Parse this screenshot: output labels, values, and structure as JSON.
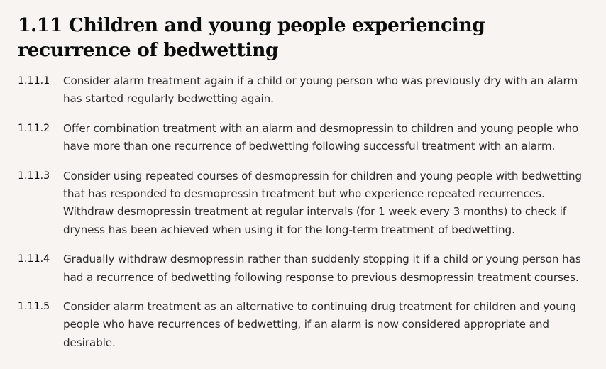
{
  "section": {
    "title": "1.11 Children and young people experiencing recurrence of bedwetting"
  },
  "recommendations": [
    {
      "number": "1.11.1",
      "text": "Consider alarm treatment again if a child or young person who was previously dry with an alarm has started regularly bedwetting again."
    },
    {
      "number": "1.11.2",
      "text": "Offer combination treatment with an alarm and desmopressin to children and young people who have more than one recurrence of bedwetting following successful treatment with an alarm."
    },
    {
      "number": "1.11.3",
      "text": "Consider using repeated courses of desmopressin for children and young people with bedwetting that has responded to desmopressin treatment but who experience repeated recurrences. Withdraw desmopressin treatment at regular intervals (for 1 week every 3 months) to check if dryness has been achieved when using it for the long-term treatment of bedwetting."
    },
    {
      "number": "1.11.4",
      "text": "Gradually withdraw desmopressin rather than suddenly stopping it if a child or young person has had a recurrence of bedwetting following response to previous desmopressin treatment courses."
    },
    {
      "number": "1.11.5",
      "text": "Consider alarm treatment as an alternative to continuing drug treatment for children and young people who have recurrences of bedwetting, if an alarm is now considered appropriate and desirable."
    }
  ]
}
